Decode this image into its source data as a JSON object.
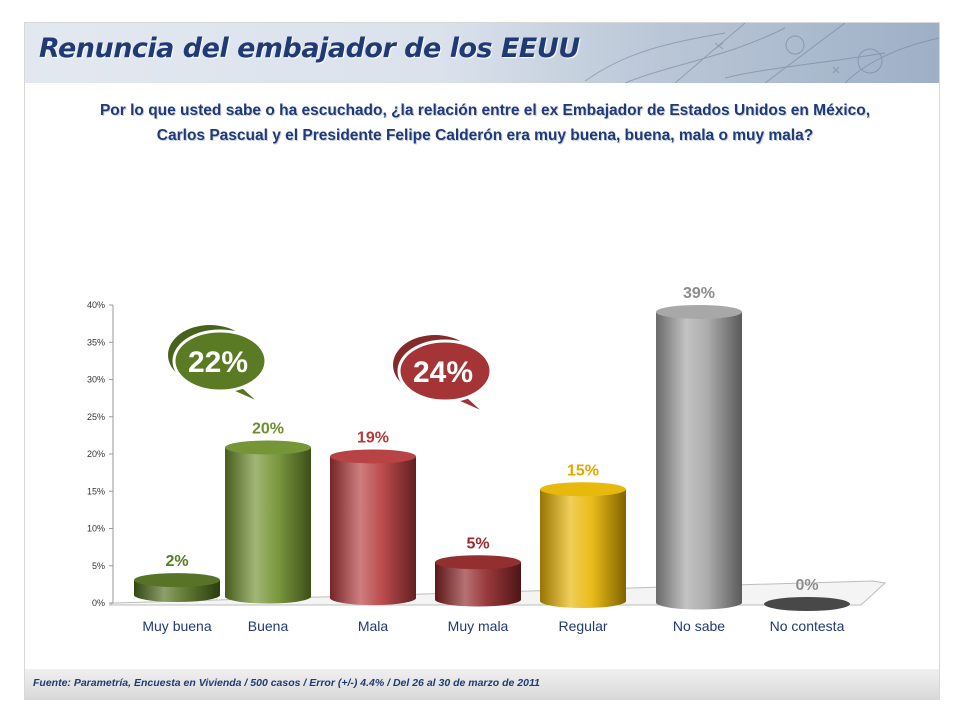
{
  "header": {
    "title": "Renuncia del embajador de los EEUU"
  },
  "question": {
    "line1": "Por lo que usted sabe o ha escuchado, ¿la relación entre el ex Embajador de Estados Unidos en México,",
    "line2": "Carlos Pascual y el Presidente Felipe Calderón era muy buena, buena, mala o muy mala?"
  },
  "footer": {
    "source": "Fuente: Parametría, Encuesta en Vivienda / 500 casos / Error (+/-) 4.4% / Del  26 al 30 de marzo de 2011"
  },
  "chart_data": {
    "type": "bar",
    "categories": [
      "Muy buena",
      "Buena",
      "Mala",
      "Muy mala",
      "Regular",
      "No sabe",
      "No contesta"
    ],
    "values": [
      2,
      20,
      19,
      5,
      15,
      39,
      0
    ],
    "data_labels": [
      "2%",
      "20%",
      "19%",
      "5%",
      "15%",
      "39%",
      "0%"
    ],
    "colors": [
      "#4f6b1c",
      "#6f8f2c",
      "#b4393a",
      "#8e2426",
      "#e8b400",
      "#a3a3a3",
      "#5a5a5a"
    ],
    "label_colors": [
      "#5a7a23",
      "#6f8f2c",
      "#b23a3a",
      "#9b2a2c",
      "#e0a800",
      "#8c8c8c",
      "#8c8c8c"
    ],
    "yticks": [
      "0%",
      "5%",
      "10%",
      "15%",
      "20%",
      "25%",
      "30%",
      "35%",
      "40%"
    ],
    "ylim": [
      0,
      40
    ],
    "grid": false,
    "callouts": [
      {
        "text": "22%",
        "color": "#5a7a23"
      },
      {
        "text": "24%",
        "color": "#a53436"
      }
    ]
  }
}
